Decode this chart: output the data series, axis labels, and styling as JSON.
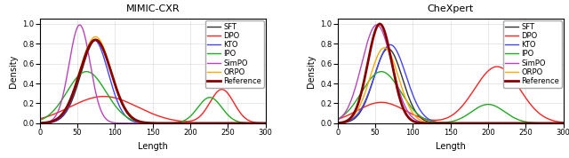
{
  "titles": [
    "MIMIC-CXR",
    "CheXpert"
  ],
  "xlabel": "Length",
  "ylabel": "Density",
  "xlim": [
    0,
    300
  ],
  "ylim": [
    0,
    1.05
  ],
  "xticks": [
    0,
    50,
    100,
    150,
    200,
    250,
    300
  ],
  "yticks": [
    0.0,
    0.2,
    0.4,
    0.6,
    0.8,
    1.0
  ],
  "legend_labels": [
    "SFT",
    "DPO",
    "KTO",
    "IPO",
    "SimPO",
    "ORPO",
    "Reference"
  ],
  "colors": {
    "SFT": "#333333",
    "DPO": "#ff2222",
    "KTO": "#4444ff",
    "IPO": "#22aa22",
    "SimPO": "#bb44bb",
    "ORPO": "#ffaa00",
    "Reference": "#880000"
  },
  "linewidths": {
    "SFT": 1.0,
    "DPO": 1.0,
    "KTO": 1.0,
    "IPO": 1.0,
    "SimPO": 1.0,
    "ORPO": 1.0,
    "Reference": 2.0
  },
  "linestyles": {
    "SFT": "-",
    "DPO": "-",
    "KTO": "-",
    "IPO": "-",
    "SimPO": "-",
    "ORPO": "-",
    "Reference": "-"
  },
  "mimic": {
    "SFT": {
      "peaks": [
        {
          "mu": 75,
          "sigma": 20,
          "amp": 0.84
        }
      ]
    },
    "DPO": {
      "peaks": [
        {
          "mu": 85,
          "sigma": 45,
          "amp": 0.27
        },
        {
          "mu": 242,
          "sigma": 16,
          "amp": 0.34
        }
      ]
    },
    "KTO": {
      "peaks": [
        {
          "mu": 72,
          "sigma": 19,
          "amp": 0.84
        }
      ]
    },
    "IPO": {
      "peaks": [
        {
          "mu": 62,
          "sigma": 26,
          "amp": 0.52
        },
        {
          "mu": 226,
          "sigma": 16,
          "amp": 0.26
        }
      ]
    },
    "SimPO": {
      "peaks": [
        {
          "mu": 53,
          "sigma": 14,
          "amp": 0.99
        }
      ]
    },
    "ORPO": {
      "peaks": [
        {
          "mu": 74,
          "sigma": 21,
          "amp": 0.87
        }
      ]
    },
    "Reference": {
      "peaks": [
        {
          "mu": 74,
          "sigma": 21,
          "amp": 0.84
        }
      ]
    }
  },
  "chexpert": {
    "SFT": {
      "peaks": [
        {
          "mu": 67,
          "sigma": 19,
          "amp": 0.75
        }
      ]
    },
    "DPO": {
      "peaks": [
        {
          "mu": 58,
          "sigma": 32,
          "amp": 0.21
        },
        {
          "mu": 212,
          "sigma": 30,
          "amp": 0.57
        }
      ]
    },
    "KTO": {
      "peaks": [
        {
          "mu": 70,
          "sigma": 21,
          "amp": 0.79
        }
      ]
    },
    "IPO": {
      "peaks": [
        {
          "mu": 58,
          "sigma": 26,
          "amp": 0.52
        },
        {
          "mu": 200,
          "sigma": 22,
          "amp": 0.19
        }
      ]
    },
    "SimPO": {
      "peaks": [
        {
          "mu": 52,
          "sigma": 20,
          "amp": 0.99
        }
      ]
    },
    "ORPO": {
      "peaks": [
        {
          "mu": 62,
          "sigma": 19,
          "amp": 0.76
        }
      ]
    },
    "Reference": {
      "peaks": [
        {
          "mu": 56,
          "sigma": 16,
          "amp": 1.0
        }
      ]
    }
  },
  "figsize": [
    6.4,
    1.78
  ],
  "dpi": 100,
  "title_fontsize": 8,
  "label_fontsize": 7,
  "tick_fontsize": 6,
  "legend_fontsize": 6
}
